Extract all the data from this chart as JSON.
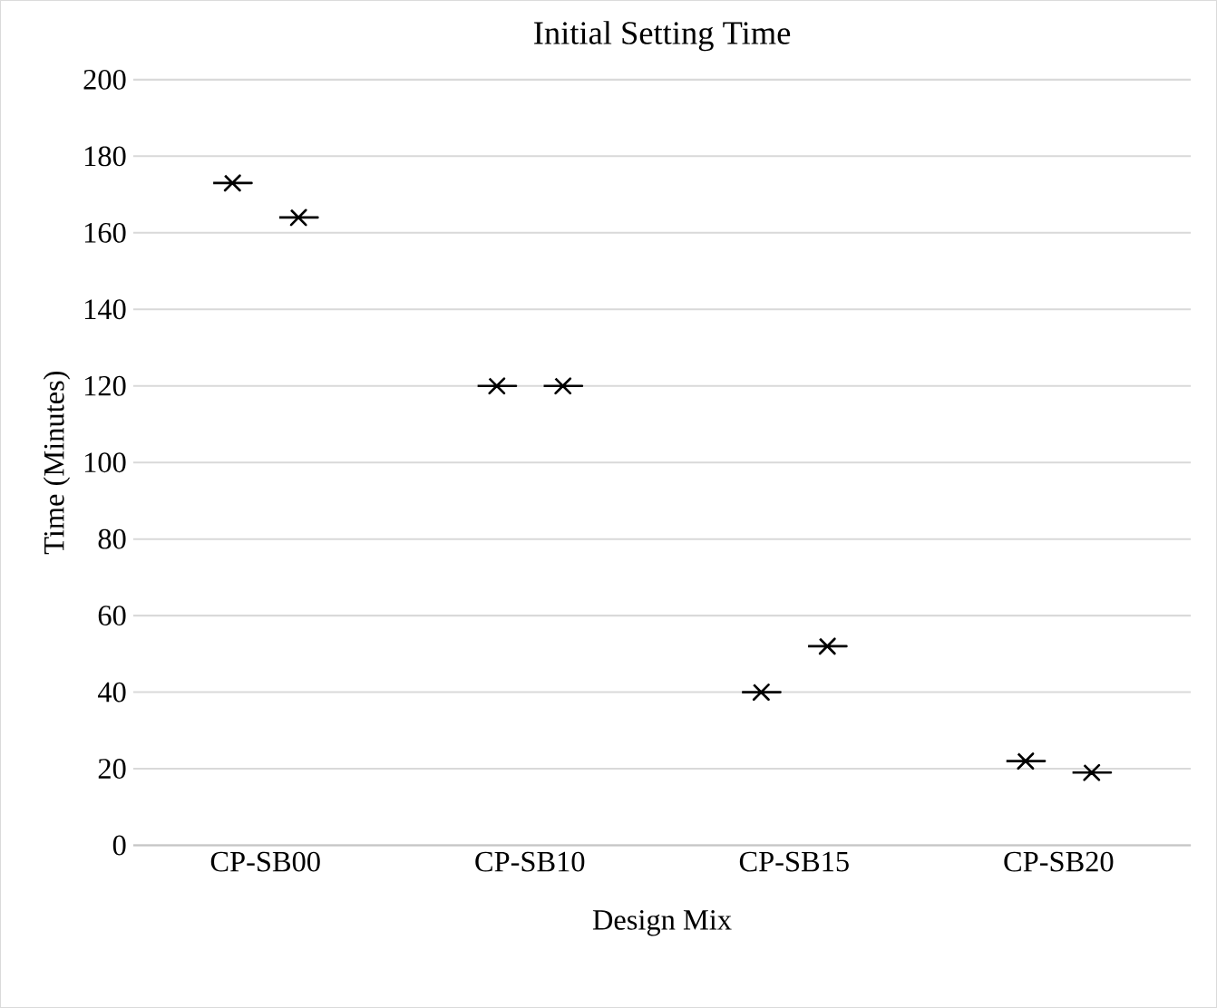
{
  "chart_data": {
    "type": "scatter",
    "title": "Initial Setting Time",
    "xlabel": "Design Mix",
    "ylabel": "Time (Minutes)",
    "categories": [
      "CP-SB00",
      "CP-SB10",
      "CP-SB15",
      "CP-SB20"
    ],
    "series": [
      {
        "color": "#000000",
        "values": [
          173,
          120,
          40,
          22
        ]
      },
      {
        "color": "#000000",
        "values": [
          164,
          120,
          52,
          19
        ]
      }
    ],
    "ylim": [
      0,
      200
    ],
    "yticks": [
      0,
      20,
      40,
      60,
      80,
      100,
      120,
      140,
      160,
      180,
      200
    ],
    "grid": "y",
    "marker": "cross"
  }
}
